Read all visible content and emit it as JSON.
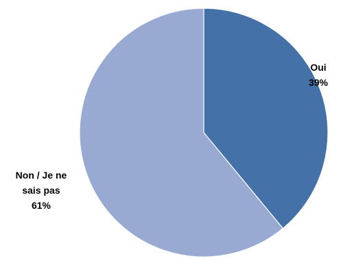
{
  "chart_data": {
    "type": "pie",
    "categories": [
      "Oui",
      "Non / Je ne sais pas"
    ],
    "values": [
      39,
      61
    ],
    "colors": [
      "#4472A8",
      "#98AAD2"
    ],
    "data_labels": [
      {
        "lines": [
          "Oui",
          "39%"
        ]
      },
      {
        "lines": [
          "Non / Je ne",
          "sais pas",
          "61%"
        ]
      }
    ],
    "start_angle": "12 o'clock",
    "direction": "clockwise"
  }
}
